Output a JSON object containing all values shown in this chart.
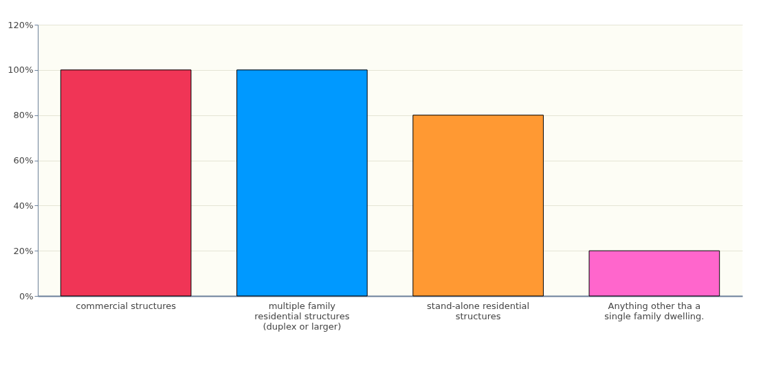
{
  "chart_data": {
    "type": "bar",
    "categories": [
      "commercial structures",
      "multiple family residential structures (duplex or larger)",
      "stand-alone residential structures",
      "Anything other tha a single family dwelling."
    ],
    "values": [
      100,
      100,
      80,
      20
    ],
    "colors": [
      "#f03556",
      "#0099ff",
      "#ff9933",
      "#ff66cc"
    ],
    "ylim": [
      0,
      120
    ],
    "yticks": [
      {
        "value": 0,
        "label": "0%"
      },
      {
        "value": 20,
        "label": "20%"
      },
      {
        "value": 40,
        "label": "40%"
      },
      {
        "value": 60,
        "label": "60%"
      },
      {
        "value": 80,
        "label": "80%"
      },
      {
        "value": 100,
        "label": "100%"
      },
      {
        "value": 120,
        "label": "120%"
      }
    ],
    "grid": "y"
  }
}
